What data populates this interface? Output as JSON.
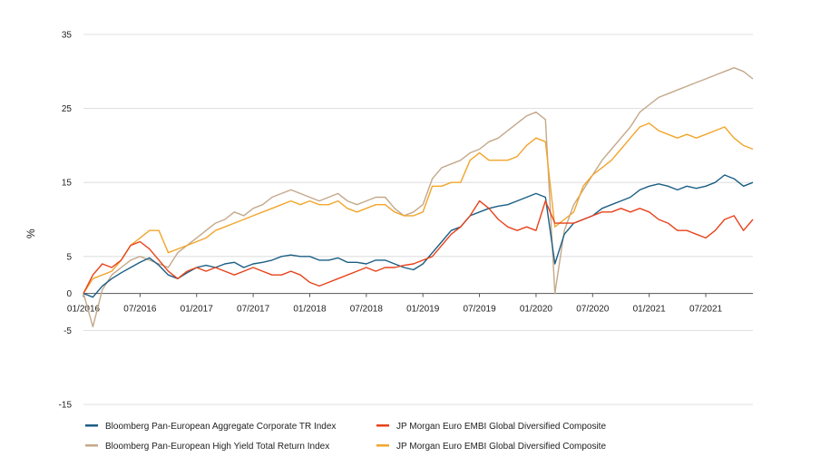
{
  "chart_data": {
    "type": "line",
    "ylabel": "%",
    "ylim": [
      -15,
      35
    ],
    "xlim": [
      "2016-01",
      "2021-12"
    ],
    "y_ticks": [
      "35",
      "25",
      "15",
      "5",
      "0",
      "-5",
      "-15"
    ],
    "y_tick_values": [
      35,
      25,
      15,
      5,
      0,
      -5,
      -15
    ],
    "x_ticks": [
      "01/2016",
      "07/2016",
      "01/2017",
      "07/2017",
      "01/2018",
      "07/2018",
      "01/2019",
      "07/2019",
      "01/2020",
      "07/2020",
      "01/2021",
      "07/2021"
    ],
    "grid": "horizontal",
    "legend_position": "bottom",
    "series": [
      {
        "name": "Bloomberg Pan-European Aggregate Corporate TR Index",
        "color": "#1b5e84",
        "x": [
          "2016-01",
          "2016-02",
          "2016-03",
          "2016-04",
          "2016-05",
          "2016-06",
          "2016-07",
          "2016-08",
          "2016-09",
          "2016-10",
          "2016-11",
          "2016-12",
          "2017-01",
          "2017-02",
          "2017-03",
          "2017-04",
          "2017-05",
          "2017-06",
          "2017-07",
          "2017-08",
          "2017-09",
          "2017-10",
          "2017-11",
          "2017-12",
          "2018-01",
          "2018-02",
          "2018-03",
          "2018-04",
          "2018-05",
          "2018-06",
          "2018-07",
          "2018-08",
          "2018-09",
          "2018-10",
          "2018-11",
          "2018-12",
          "2019-01",
          "2019-02",
          "2019-03",
          "2019-04",
          "2019-05",
          "2019-06",
          "2019-07",
          "2019-08",
          "2019-09",
          "2019-10",
          "2019-11",
          "2019-12",
          "2020-01",
          "2020-02",
          "2020-03",
          "2020-04",
          "2020-05",
          "2020-06",
          "2020-07",
          "2020-08",
          "2020-09",
          "2020-10",
          "2020-11",
          "2020-12",
          "2021-01",
          "2021-02",
          "2021-03",
          "2021-04",
          "2021-05",
          "2021-06",
          "2021-07",
          "2021-08",
          "2021-09",
          "2021-10",
          "2021-11",
          "2021-12"
        ],
        "values": [
          0,
          -0.5,
          1.0,
          2.0,
          2.8,
          3.5,
          4.2,
          4.8,
          3.8,
          2.5,
          2.0,
          2.8,
          3.5,
          3.8,
          3.5,
          4.0,
          4.2,
          3.5,
          4.0,
          4.2,
          4.5,
          5.0,
          5.2,
          5.0,
          5.0,
          4.5,
          4.5,
          4.8,
          4.2,
          4.2,
          4.0,
          4.5,
          4.5,
          4.0,
          3.5,
          3.2,
          4.0,
          5.5,
          7.0,
          8.5,
          9.0,
          10.5,
          11.0,
          11.5,
          11.8,
          12.0,
          12.5,
          13.0,
          13.5,
          13.0,
          4.0,
          8.0,
          9.5,
          10.0,
          10.5,
          11.5,
          12.0,
          12.5,
          13.0,
          14.0,
          14.5,
          14.8,
          14.5,
          14.0,
          14.5,
          14.2,
          14.5,
          15.0,
          16.0,
          15.5,
          14.5,
          15.0
        ]
      },
      {
        "name": "Bloomberg Pan-European High Yield Total Return Index",
        "color": "#c4a88a",
        "x": [
          "2016-01",
          "2016-02",
          "2016-03",
          "2016-04",
          "2016-05",
          "2016-06",
          "2016-07",
          "2016-08",
          "2016-09",
          "2016-10",
          "2016-11",
          "2016-12",
          "2017-01",
          "2017-02",
          "2017-03",
          "2017-04",
          "2017-05",
          "2017-06",
          "2017-07",
          "2017-08",
          "2017-09",
          "2017-10",
          "2017-11",
          "2017-12",
          "2018-01",
          "2018-02",
          "2018-03",
          "2018-04",
          "2018-05",
          "2018-06",
          "2018-07",
          "2018-08",
          "2018-09",
          "2018-10",
          "2018-11",
          "2018-12",
          "2019-01",
          "2019-02",
          "2019-03",
          "2019-04",
          "2019-05",
          "2019-06",
          "2019-07",
          "2019-08",
          "2019-09",
          "2019-10",
          "2019-11",
          "2019-12",
          "2020-01",
          "2020-02",
          "2020-03",
          "2020-04",
          "2020-05",
          "2020-06",
          "2020-07",
          "2020-08",
          "2020-09",
          "2020-10",
          "2020-11",
          "2020-12",
          "2021-01",
          "2021-02",
          "2021-03",
          "2021-04",
          "2021-05",
          "2021-06",
          "2021-07",
          "2021-08",
          "2021-09",
          "2021-10",
          "2021-11",
          "2021-12"
        ],
        "values": [
          0,
          -4.5,
          0.5,
          2.5,
          3.5,
          4.5,
          5.0,
          4.5,
          4.0,
          3.5,
          5.5,
          6.5,
          7.5,
          8.5,
          9.5,
          10.0,
          11.0,
          10.5,
          11.5,
          12.0,
          13.0,
          13.5,
          14.0,
          13.5,
          13.0,
          12.5,
          13.0,
          13.5,
          12.5,
          12.0,
          12.5,
          13.0,
          13.0,
          11.5,
          10.5,
          11.0,
          12.0,
          15.5,
          17.0,
          17.5,
          18.0,
          19.0,
          19.5,
          20.5,
          21.0,
          22.0,
          23.0,
          24.0,
          24.5,
          23.5,
          0,
          8.5,
          12.0,
          14.0,
          16.0,
          18.0,
          19.5,
          21.0,
          22.5,
          24.5,
          25.5,
          26.5,
          27.0,
          27.5,
          28.0,
          28.5,
          29.0,
          29.5,
          30.0,
          30.5,
          30.0,
          29.0
        ]
      },
      {
        "name": "JP Morgan Euro EMBI Global Diversified Composite",
        "color": "#e8421b",
        "x": [
          "2016-01",
          "2016-02",
          "2016-03",
          "2016-04",
          "2016-05",
          "2016-06",
          "2016-07",
          "2016-08",
          "2016-09",
          "2016-10",
          "2016-11",
          "2016-12",
          "2017-01",
          "2017-02",
          "2017-03",
          "2017-04",
          "2017-05",
          "2017-06",
          "2017-07",
          "2017-08",
          "2017-09",
          "2017-10",
          "2017-11",
          "2017-12",
          "2018-01",
          "2018-02",
          "2018-03",
          "2018-04",
          "2018-05",
          "2018-06",
          "2018-07",
          "2018-08",
          "2018-09",
          "2018-10",
          "2018-11",
          "2018-12",
          "2019-01",
          "2019-02",
          "2019-03",
          "2019-04",
          "2019-05",
          "2019-06",
          "2019-07",
          "2019-08",
          "2019-09",
          "2019-10",
          "2019-11",
          "2019-12",
          "2020-01",
          "2020-02",
          "2020-03",
          "2020-04",
          "2020-05",
          "2020-06",
          "2020-07",
          "2020-08",
          "2020-09",
          "2020-10",
          "2020-11",
          "2020-12",
          "2021-01",
          "2021-02",
          "2021-03",
          "2021-04",
          "2021-05",
          "2021-06",
          "2021-07",
          "2021-08",
          "2021-09",
          "2021-10",
          "2021-11",
          "2021-12"
        ],
        "values": [
          0,
          2.5,
          4.0,
          3.5,
          4.5,
          6.5,
          7.0,
          6.0,
          4.5,
          3.0,
          2.0,
          3.0,
          3.5,
          3.0,
          3.5,
          3.0,
          2.5,
          3.0,
          3.5,
          3.0,
          2.5,
          2.5,
          3.0,
          2.5,
          1.5,
          1.0,
          1.5,
          2.0,
          2.5,
          3.0,
          3.5,
          3.0,
          3.5,
          3.5,
          3.8,
          4.0,
          4.5,
          5.0,
          6.5,
          8.0,
          9.0,
          10.5,
          12.5,
          11.5,
          10.0,
          9.0,
          8.5,
          9.0,
          8.5,
          12.5,
          9.5,
          9.5,
          9.5,
          10.0,
          10.5,
          11.0,
          11.0,
          11.5,
          11.0,
          11.5,
          11.0,
          10.0,
          9.5,
          8.5,
          8.5,
          8.0,
          7.5,
          8.5,
          10.0,
          10.5,
          8.5,
          10.0
        ]
      },
      {
        "name": "JP Morgan Euro EMBI Global Diversified Composite",
        "color": "#f2a52b",
        "x": [
          "2016-01",
          "2016-02",
          "2016-03",
          "2016-04",
          "2016-05",
          "2016-06",
          "2016-07",
          "2016-08",
          "2016-09",
          "2016-10",
          "2016-11",
          "2016-12",
          "2017-01",
          "2017-02",
          "2017-03",
          "2017-04",
          "2017-05",
          "2017-06",
          "2017-07",
          "2017-08",
          "2017-09",
          "2017-10",
          "2017-11",
          "2017-12",
          "2018-01",
          "2018-02",
          "2018-03",
          "2018-04",
          "2018-05",
          "2018-06",
          "2018-07",
          "2018-08",
          "2018-09",
          "2018-10",
          "2018-11",
          "2018-12",
          "2019-01",
          "2019-02",
          "2019-03",
          "2019-04",
          "2019-05",
          "2019-06",
          "2019-07",
          "2019-08",
          "2019-09",
          "2019-10",
          "2019-11",
          "2019-12",
          "2020-01",
          "2020-02",
          "2020-03",
          "2020-04",
          "2020-05",
          "2020-06",
          "2020-07",
          "2020-08",
          "2020-09",
          "2020-10",
          "2020-11",
          "2020-12",
          "2021-01",
          "2021-02",
          "2021-03",
          "2021-04",
          "2021-05",
          "2021-06",
          "2021-07",
          "2021-08",
          "2021-09",
          "2021-10",
          "2021-11",
          "2021-12"
        ],
        "values": [
          0,
          2.0,
          2.5,
          3.0,
          4.5,
          6.5,
          7.5,
          8.5,
          8.5,
          5.5,
          6.0,
          6.5,
          7.0,
          7.5,
          8.5,
          9.0,
          9.5,
          10.0,
          10.5,
          11.0,
          11.5,
          12.0,
          12.5,
          12.0,
          12.5,
          12.0,
          12.0,
          12.5,
          11.5,
          11.0,
          11.5,
          12.0,
          12.0,
          11.0,
          10.5,
          10.5,
          11.0,
          14.5,
          14.5,
          15.0,
          15.0,
          18.0,
          19.0,
          18.0,
          18.0,
          18.0,
          18.5,
          20.0,
          21.0,
          20.5,
          9.0,
          10.0,
          11.0,
          14.5,
          16.0,
          17.0,
          18.0,
          19.5,
          21.0,
          22.5,
          23.0,
          22.0,
          21.5,
          21.0,
          21.5,
          21.0,
          21.5,
          22.0,
          22.5,
          21.0,
          20.0,
          19.5
        ]
      }
    ]
  },
  "legend": [
    {
      "label": "Bloomberg Pan-European Aggregate Corporate TR Index",
      "color": "#1b5e84"
    },
    {
      "label": "JP Morgan Euro EMBI Global Diversified Composite",
      "color": "#e8421b"
    },
    {
      "label": "Bloomberg Pan-European High Yield Total Return Index",
      "color": "#c4a88a"
    },
    {
      "label": "JP Morgan Euro EMBI Global Diversified Composite",
      "color": "#f2a52b"
    }
  ]
}
